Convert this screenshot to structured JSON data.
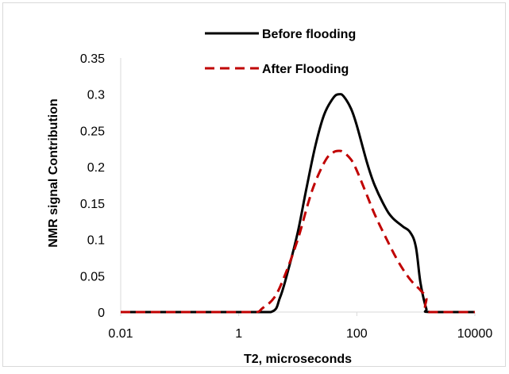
{
  "chart_data": {
    "type": "line",
    "title": "",
    "xlabel": "T2, microseconds",
    "ylabel": "NMR signal Contribution",
    "x_scale": "log",
    "xlim": [
      0.01,
      10000
    ],
    "ylim": [
      0,
      0.35
    ],
    "x_ticks": [
      0.01,
      1,
      100,
      10000
    ],
    "x_tick_labels": [
      "0.01",
      "1",
      "100",
      "10000"
    ],
    "y_ticks": [
      0,
      0.05,
      0.1,
      0.15,
      0.2,
      0.25,
      0.3,
      0.35
    ],
    "y_tick_labels": [
      "0",
      "0.05",
      "0.1",
      "0.15",
      "0.2",
      "0.25",
      "0.3",
      "0.35"
    ],
    "grid": false,
    "legend_position": "top",
    "series": [
      {
        "name": "Before flooding",
        "color": "#000000",
        "style": "solid",
        "points": [
          [
            0.01,
            0
          ],
          [
            0.1,
            0
          ],
          [
            1,
            0
          ],
          [
            3.5,
            0
          ],
          [
            5,
            0.02
          ],
          [
            7,
            0.06
          ],
          [
            10,
            0.11
          ],
          [
            14,
            0.17
          ],
          [
            20,
            0.23
          ],
          [
            28,
            0.272
          ],
          [
            40,
            0.295
          ],
          [
            50,
            0.3
          ],
          [
            60,
            0.297
          ],
          [
            80,
            0.28
          ],
          [
            100,
            0.257
          ],
          [
            150,
            0.205
          ],
          [
            200,
            0.175
          ],
          [
            300,
            0.145
          ],
          [
            400,
            0.13
          ],
          [
            600,
            0.118
          ],
          [
            800,
            0.11
          ],
          [
            1000,
            0.09
          ],
          [
            1200,
            0.04
          ],
          [
            1500,
            0.005
          ],
          [
            1700,
            0
          ],
          [
            10000,
            0
          ]
        ]
      },
      {
        "name": "After Flooding",
        "color": "#c00000",
        "style": "dashed",
        "points": [
          [
            0.01,
            0
          ],
          [
            0.1,
            0
          ],
          [
            1,
            0
          ],
          [
            2,
            0
          ],
          [
            2.5,
            0.005
          ],
          [
            4,
            0.02
          ],
          [
            6,
            0.05
          ],
          [
            10,
            0.1
          ],
          [
            15,
            0.15
          ],
          [
            20,
            0.18
          ],
          [
            30,
            0.21
          ],
          [
            40,
            0.22
          ],
          [
            50,
            0.222
          ],
          [
            60,
            0.22
          ],
          [
            80,
            0.21
          ],
          [
            100,
            0.195
          ],
          [
            150,
            0.16
          ],
          [
            200,
            0.135
          ],
          [
            300,
            0.105
          ],
          [
            500,
            0.07
          ],
          [
            800,
            0.045
          ],
          [
            1200,
            0.03
          ],
          [
            1500,
            0.02
          ],
          [
            1700,
            0
          ],
          [
            10000,
            0
          ]
        ]
      }
    ]
  }
}
